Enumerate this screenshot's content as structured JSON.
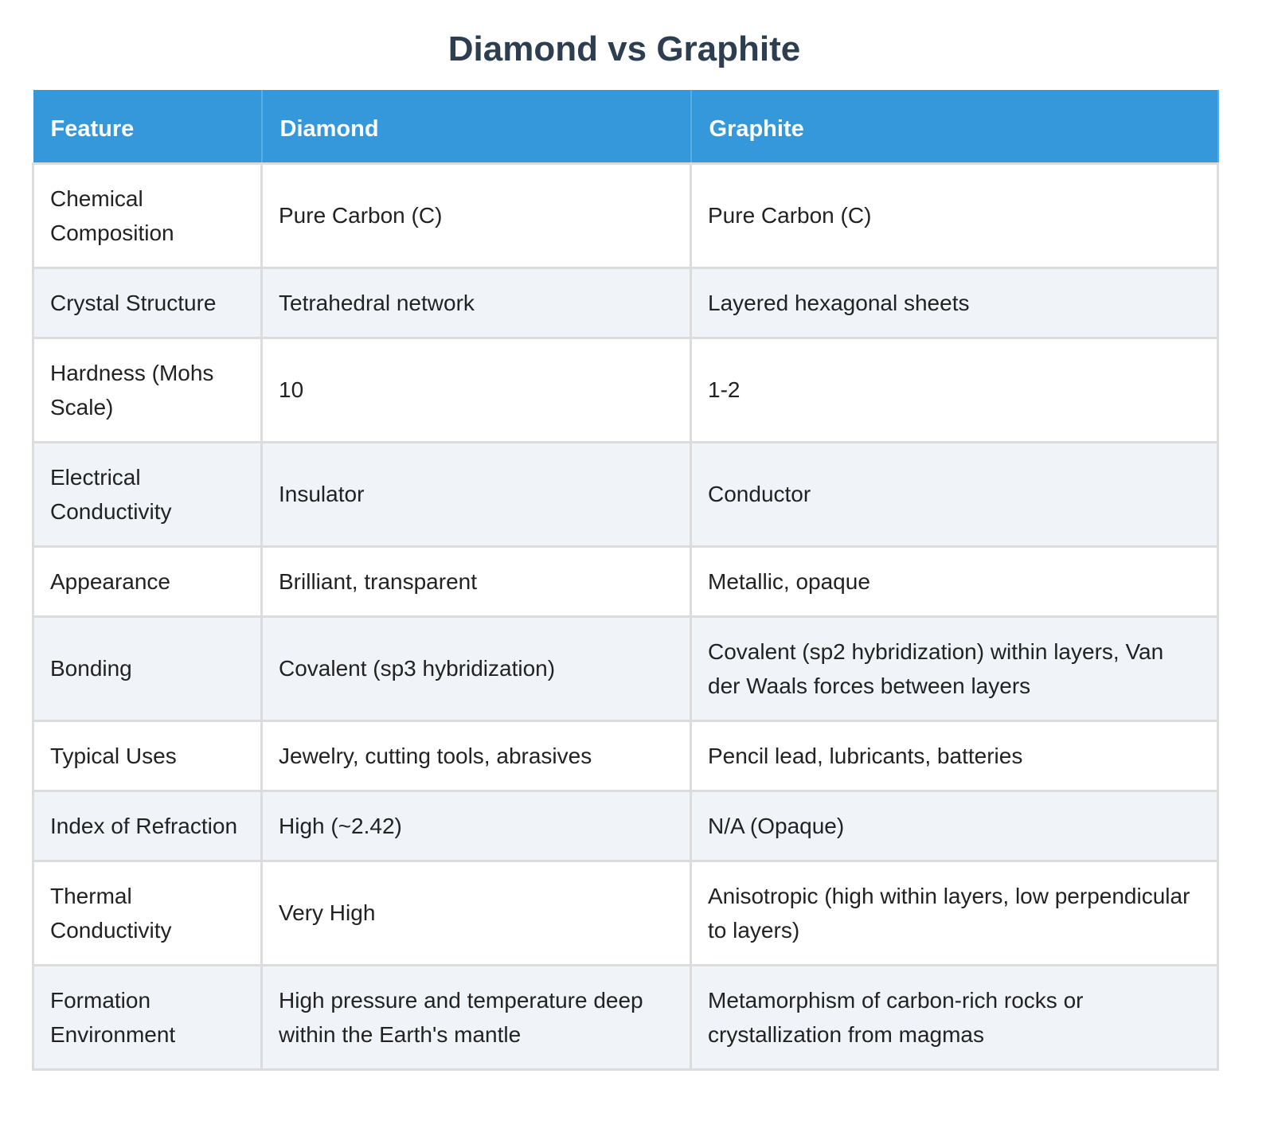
{
  "title": "Diamond vs Graphite",
  "table": {
    "header": [
      "Feature",
      "Diamond",
      "Graphite"
    ],
    "rows": [
      [
        "Chemical Composition",
        "Pure Carbon (C)",
        "Pure Carbon (C)"
      ],
      [
        "Crystal Structure",
        "Tetrahedral network",
        "Layered hexagonal sheets"
      ],
      [
        "Hardness (Mohs Scale)",
        "10",
        "1-2"
      ],
      [
        "Electrical Conductivity",
        "Insulator",
        "Conductor"
      ],
      [
        "Appearance",
        "Brilliant, transparent",
        "Metallic, opaque"
      ],
      [
        "Bonding",
        "Covalent (sp3 hybridization)",
        "Covalent (sp2 hybridization) within layers, Van der Waals forces between layers"
      ],
      [
        "Typical Uses",
        "Jewelry, cutting tools, abrasives",
        "Pencil lead, lubricants, batteries"
      ],
      [
        "Index of Refraction",
        "High (~2.42)",
        "N/A (Opaque)"
      ],
      [
        "Thermal Conductivity",
        "Very High",
        "Anisotropic (high within layers, low perpendicular to layers)"
      ],
      [
        "Formation Environment",
        "High pressure and temperature deep within the Earth's mantle",
        "Metamorphism of carbon-rich rocks or crystallization from magmas"
      ]
    ]
  }
}
